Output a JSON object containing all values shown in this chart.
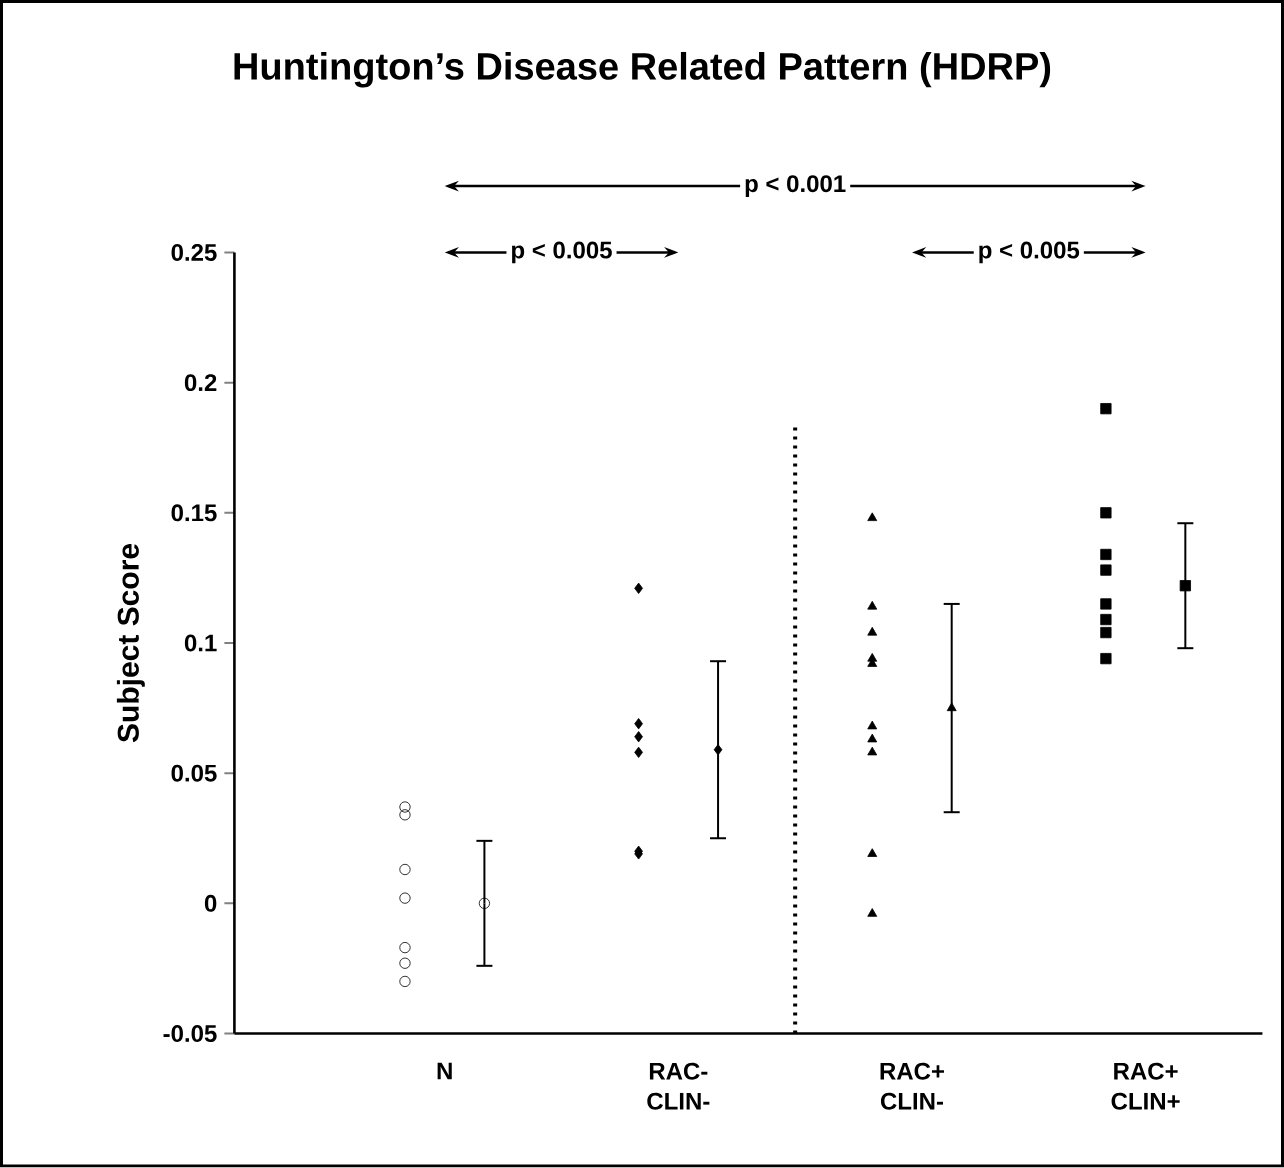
{
  "chart_data": {
    "type": "scatter",
    "title": "Huntington’s Disease Related Pattern (HDRP)",
    "ylabel": "Subject Score",
    "categories": [
      "N",
      "RAC- CLIN-",
      "RAC+ CLIN-",
      "RAC+ CLIN+"
    ],
    "ylim": [
      -0.05,
      0.25
    ],
    "yticks": [
      -0.05,
      0,
      0.05,
      0.1,
      0.15,
      0.2,
      0.25
    ],
    "series": [
      {
        "color": "#000000",
        "marker": "circle",
        "x": [
          "N",
          "N",
          "N",
          "N",
          "N",
          "N",
          "N"
        ],
        "values": [
          0.037,
          0.034,
          0.013,
          0.002,
          -0.017,
          -0.023,
          -0.03
        ]
      },
      {
        "color": "#000000",
        "marker": "circle",
        "x": [
          "N"
        ],
        "values": [
          0.0
        ],
        "errors": [
          0.024
        ]
      },
      {
        "color": "#000000",
        "marker": "diamond",
        "x": [
          "RAC- CLIN-",
          "RAC- CLIN-",
          "RAC- CLIN-",
          "RAC- CLIN-",
          "RAC- CLIN-",
          "RAC- CLIN-"
        ],
        "values": [
          0.121,
          0.069,
          0.064,
          0.058,
          0.02,
          0.019
        ]
      },
      {
        "color": "#000000",
        "marker": "diamond",
        "x": [
          "RAC- CLIN-"
        ],
        "values": [
          0.059
        ],
        "errors": [
          0.034
        ]
      },
      {
        "color": "#000000",
        "marker": "triangle",
        "x": [
          "RAC+ CLIN-",
          "RAC+ CLIN-",
          "RAC+ CLIN-",
          "RAC+ CLIN-",
          "RAC+ CLIN-",
          "RAC+ CLIN-",
          "RAC+ CLIN-",
          "RAC+ CLIN-",
          "RAC+ CLIN-",
          "RAC+ CLIN-"
        ],
        "values": [
          0.148,
          0.114,
          0.104,
          0.094,
          0.092,
          0.068,
          0.063,
          0.058,
          0.019,
          -0.004
        ]
      },
      {
        "color": "#000000",
        "marker": "triangle",
        "x": [
          "RAC+ CLIN-"
        ],
        "values": [
          0.075
        ],
        "errors": [
          0.04
        ]
      },
      {
        "color": "#000000",
        "marker": "square",
        "x": [
          "RAC+ CLIN+",
          "RAC+ CLIN+",
          "RAC+ CLIN+",
          "RAC+ CLIN+",
          "RAC+ CLIN+",
          "RAC+ CLIN+",
          "RAC+ CLIN+",
          "RAC+ CLIN+"
        ],
        "values": [
          0.19,
          0.15,
          0.134,
          0.128,
          0.115,
          0.109,
          0.104,
          0.094
        ]
      },
      {
        "color": "#000000",
        "marker": "square",
        "x": [
          "RAC+ CLIN+"
        ],
        "values": [
          0.122
        ],
        "errors": [
          0.024
        ]
      }
    ],
    "annotations": [
      "p < 0.001",
      "p < 0.005",
      "p < 0.005"
    ],
    "grid": false
  }
}
